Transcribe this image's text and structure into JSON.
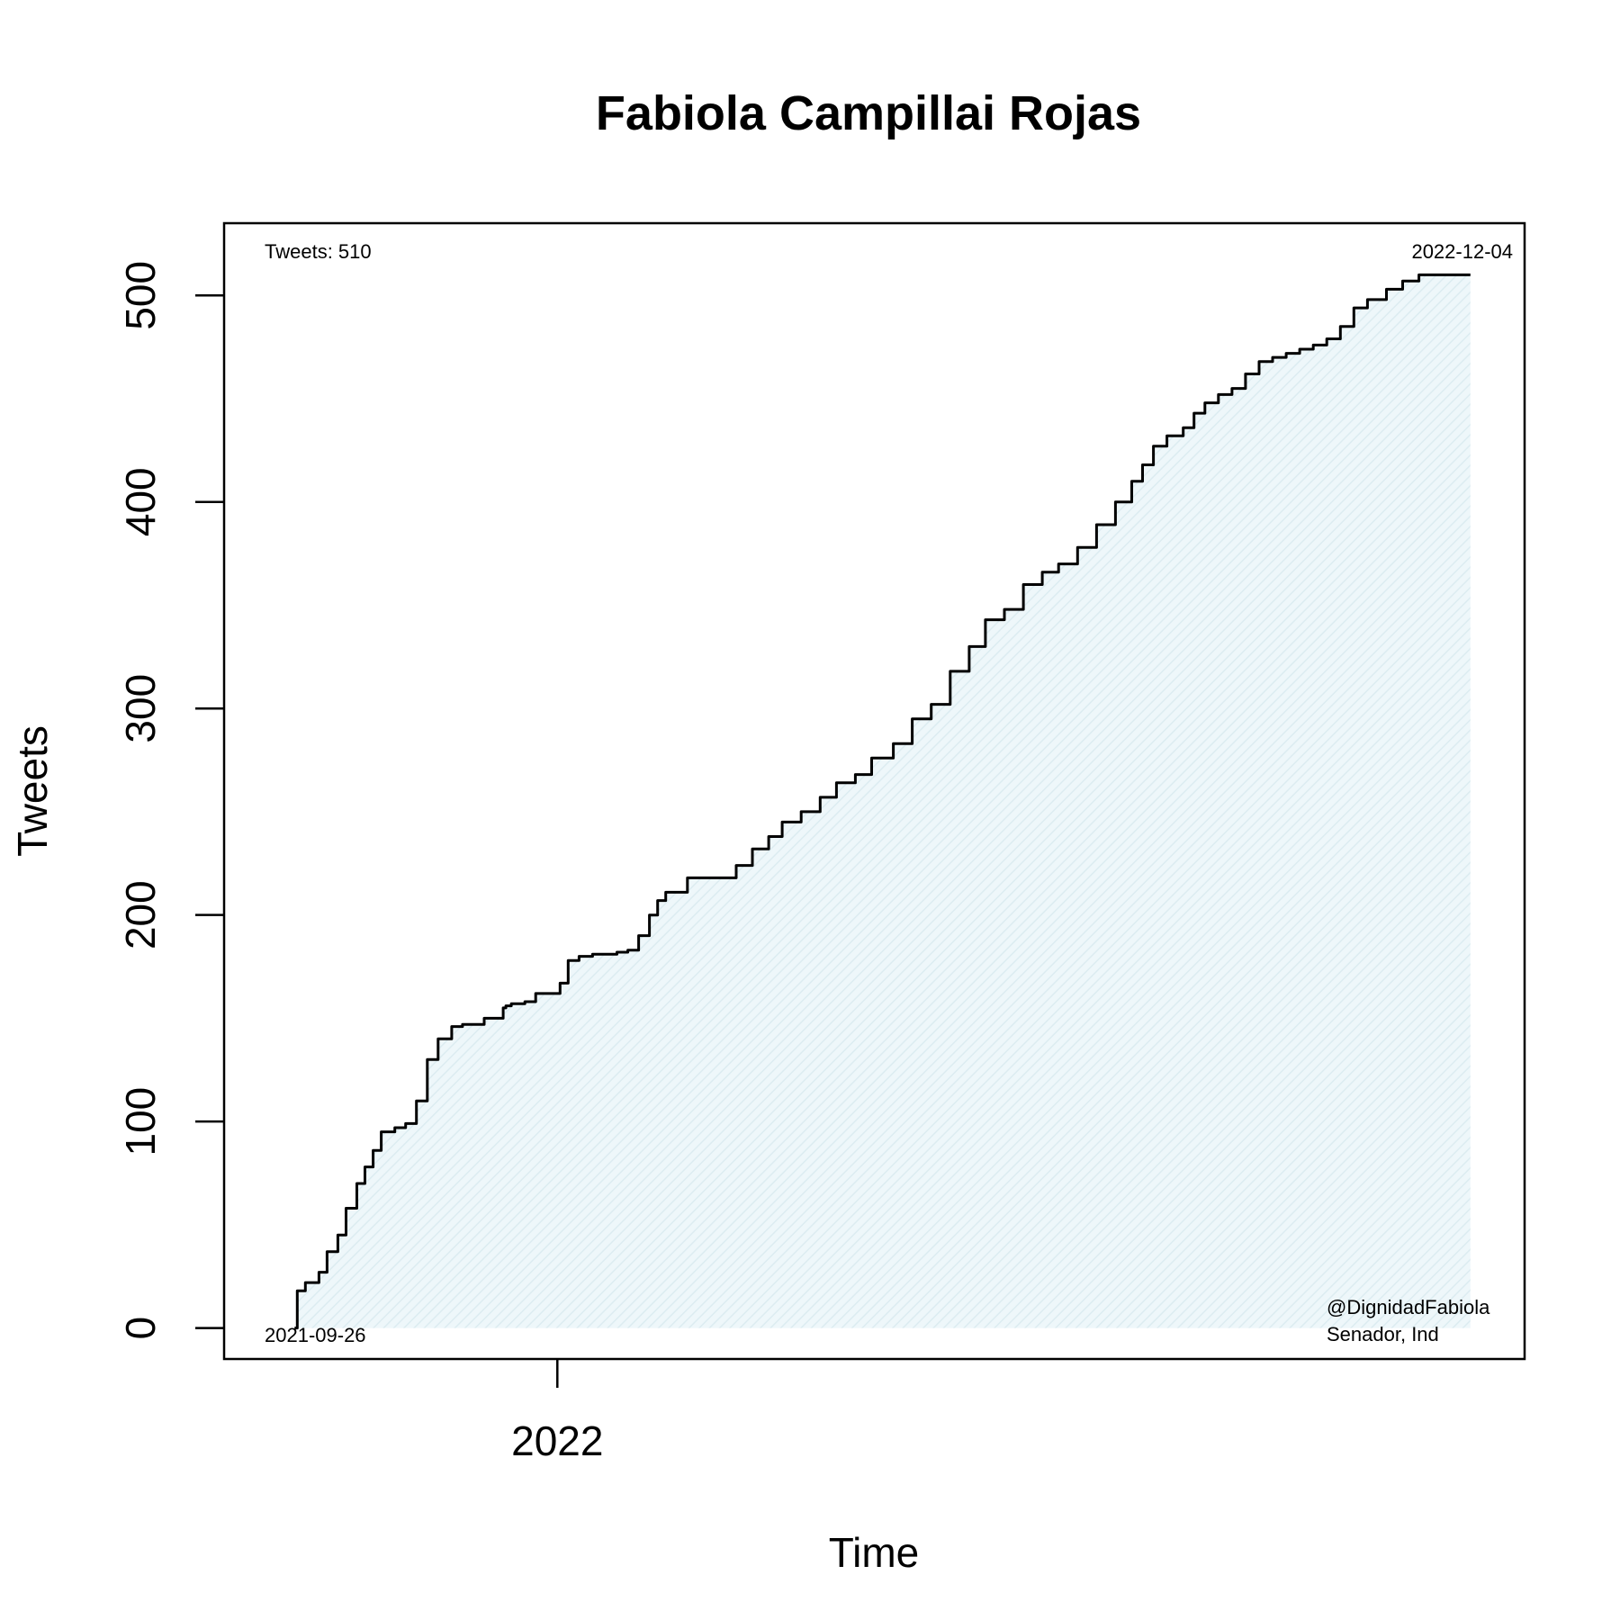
{
  "chart_data": {
    "type": "area",
    "title": "Fabiola Campillai Rojas",
    "xlabel": "Time",
    "ylabel": "Tweets",
    "x_ticks": [
      {
        "date": "2022-01-01",
        "label": "2022"
      }
    ],
    "y_ticks": [
      0,
      100,
      200,
      300,
      400,
      500
    ],
    "xlim": [
      "2021-08-31",
      "2022-12-24"
    ],
    "ylim": [
      -15,
      535
    ],
    "grid": false,
    "annotations": {
      "total": "Tweets: 510",
      "start_date": "2021-09-26",
      "end_date": "2022-12-04",
      "handle": "@DignidadFabiola",
      "role": "Senador, Ind"
    },
    "colors": {
      "fill": "#dff0f5",
      "line": "#000000"
    },
    "series": [
      {
        "x": [
          "2021-09-26",
          "2021-09-27",
          "2021-09-30",
          "2021-10-05",
          "2021-10-08",
          "2021-10-12",
          "2021-10-15",
          "2021-10-19",
          "2021-10-22",
          "2021-10-25",
          "2021-10-28",
          "2021-11-02",
          "2021-11-06",
          "2021-11-10",
          "2021-11-14",
          "2021-11-18",
          "2021-11-23",
          "2021-11-27",
          "2021-12-05",
          "2021-12-12",
          "2021-12-13",
          "2021-12-15",
          "2021-12-20",
          "2021-12-24",
          "2022-01-02",
          "2022-01-05",
          "2022-01-09",
          "2022-01-14",
          "2022-01-19",
          "2022-01-23",
          "2022-01-27",
          "2022-01-31",
          "2022-02-04",
          "2022-02-07",
          "2022-02-10",
          "2022-02-18",
          "2022-03-08",
          "2022-03-14",
          "2022-03-20",
          "2022-03-25",
          "2022-04-01",
          "2022-04-08",
          "2022-04-14",
          "2022-04-21",
          "2022-04-27",
          "2022-05-05",
          "2022-05-12",
          "2022-05-19",
          "2022-05-26",
          "2022-06-02",
          "2022-06-08",
          "2022-06-15",
          "2022-06-22",
          "2022-06-29",
          "2022-07-05",
          "2022-07-12",
          "2022-07-19",
          "2022-07-26",
          "2022-08-01",
          "2022-08-05",
          "2022-08-09",
          "2022-08-14",
          "2022-08-20",
          "2022-08-24",
          "2022-08-28",
          "2022-09-02",
          "2022-09-07",
          "2022-09-12",
          "2022-09-17",
          "2022-09-22",
          "2022-09-27",
          "2022-10-02",
          "2022-10-07",
          "2022-10-12",
          "2022-10-17",
          "2022-10-22",
          "2022-10-27",
          "2022-11-03",
          "2022-11-09",
          "2022-11-15",
          "2022-11-20",
          "2022-11-24",
          "2022-11-28",
          "2022-12-02",
          "2022-12-04"
        ],
        "values": [
          0,
          18,
          22,
          27,
          37,
          45,
          58,
          70,
          78,
          86,
          95,
          97,
          99,
          110,
          130,
          140,
          146,
          147,
          150,
          155,
          156,
          157,
          158,
          162,
          167,
          178,
          180,
          181,
          181,
          182,
          183,
          190,
          200,
          207,
          211,
          218,
          224,
          232,
          238,
          245,
          250,
          257,
          264,
          268,
          276,
          283,
          295,
          302,
          318,
          330,
          343,
          348,
          360,
          366,
          370,
          378,
          389,
          400,
          410,
          418,
          427,
          432,
          436,
          443,
          448,
          452,
          455,
          462,
          468,
          470,
          472,
          474,
          476,
          479,
          485,
          494,
          498,
          503,
          507,
          510,
          510,
          510,
          510,
          510,
          510
        ]
      }
    ]
  }
}
